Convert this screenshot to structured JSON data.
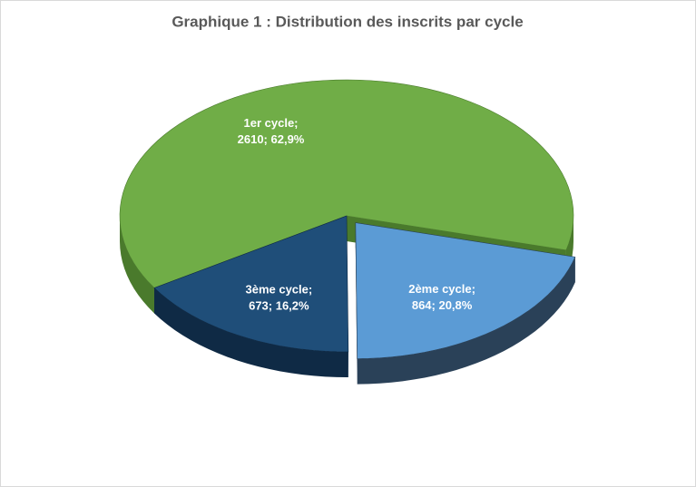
{
  "chart_data": {
    "type": "pie3d",
    "title": "Graphique 1 : Distribution des inscrits par cycle",
    "categories": [
      "1er cycle;",
      "2ème cycle;",
      "3ème cycle;"
    ],
    "values": [
      2610,
      864,
      673
    ],
    "value_labels": [
      "2610; 62,9%",
      "864; 20,8%",
      "673; 16,2%"
    ],
    "colors": [
      "#70ad47",
      "#5b9bd5",
      "#1f4e79"
    ],
    "side_colors": [
      "#4a7a2c",
      "#2a4158",
      "#0f2a45"
    ]
  }
}
